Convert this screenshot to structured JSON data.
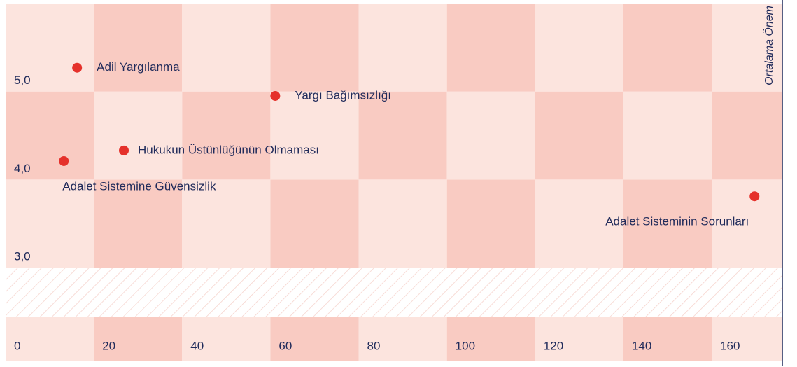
{
  "chart_data": {
    "type": "scatter",
    "y_axis_label": "Ortalama Önem",
    "labels": [
      "Adil Yargılanma",
      "Yargı Bağımsızlığı",
      "Hukukun Üstünlüğünün Olmaması",
      "Adalet Sistemine Güvensizlik",
      "Adalet Sisteminin Sorunları"
    ],
    "x": [
      16.2,
      61.1,
      26.8,
      13.2,
      169.7
    ],
    "values": [
      5.27,
      4.95,
      4.33,
      4.21,
      3.81
    ],
    "color": "#e5312b",
    "xlim": [
      0,
      176
    ],
    "xticks": [
      0,
      20,
      40,
      60,
      80,
      100,
      120,
      140,
      160
    ],
    "ylim": [
      3,
      6
    ],
    "yticks": [
      {
        "value": 3,
        "label": "3,0"
      },
      {
        "value": 4,
        "label": "4,0"
      },
      {
        "value": 5,
        "label": "5,0"
      }
    ]
  }
}
